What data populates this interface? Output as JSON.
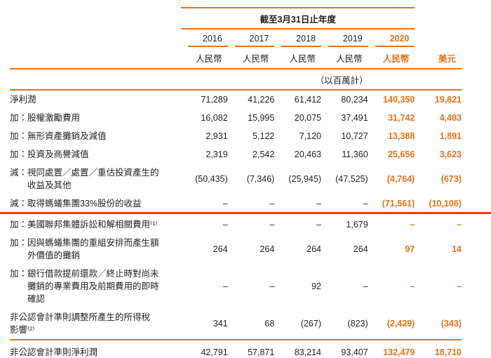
{
  "colors": {
    "accent": "#ed7014",
    "highlight": "#f23908",
    "text": "#231f20"
  },
  "header": {
    "period_title": "截至3月31日止年度",
    "years": [
      "2016",
      "2017",
      "2018",
      "2019",
      "2020"
    ],
    "currencies": [
      "人民幣",
      "人民幣",
      "人民幣",
      "人民幣",
      "人民幣",
      "美元"
    ],
    "unit_note": "（以百萬計）"
  },
  "rows": [
    {
      "prefix": "",
      "label": "淨利潤",
      "values": [
        "71,289",
        "41,226",
        "61,412",
        "80,234",
        "140,350",
        "19,821"
      ]
    },
    {
      "prefix": "加：",
      "label": "股權激勵費用",
      "values": [
        "16,082",
        "15,995",
        "20,075",
        "37,491",
        "31,742",
        "4,483"
      ]
    },
    {
      "prefix": "加：",
      "label": "無形資產攤銷及減值",
      "values": [
        "2,931",
        "5,122",
        "7,120",
        "10,727",
        "13,388",
        "1,891"
      ]
    },
    {
      "prefix": "加：",
      "label": "投資及商譽減值",
      "values": [
        "2,319",
        "2,542",
        "20,463",
        "11,360",
        "25,656",
        "3,623"
      ]
    },
    {
      "prefix": "減：",
      "label": "視同處置／處置／重估投資產生的\n收益及其他",
      "values": [
        "(50,435)",
        "(7,346)",
        "(25,945)",
        "(47,525)",
        "(4,764)",
        "(673)"
      ]
    },
    {
      "prefix": "減：",
      "label": "取得螞蟻集團33%股份的收益",
      "values": [
        "–",
        "–",
        "–",
        "–",
        "(71,561)",
        "(10,106)"
      ]
    },
    {
      "prefix": "加：",
      "label": "美國聯邦集體訴訟和解相關費用⁽¹⁾",
      "values": [
        "–",
        "–",
        "–",
        "1,679",
        "–",
        "–"
      ]
    },
    {
      "prefix": "加：",
      "label": "因與螞蟻集團的重組安排而產生額\n外價值的攤銷",
      "values": [
        "264",
        "264",
        "264",
        "264",
        "97",
        "14"
      ]
    },
    {
      "prefix": "加：",
      "label": "銀行借款提前還款／終止時對尚未\n攤銷的專業費用及前期費用的即時\n確認",
      "values": [
        "–",
        "–",
        "92",
        "–",
        "–",
        "–"
      ]
    },
    {
      "prefix": "",
      "label": "非公認會計準則調整所產生的所得稅\n影響⁽²⁾",
      "values": [
        "341",
        "68",
        "(267)",
        "(823)",
        "(2,429)",
        "(343)"
      ]
    },
    {
      "prefix": "",
      "label": "非公認會計準則淨利潤",
      "values": [
        "42,791",
        "57,871",
        "83,214",
        "93,407",
        "132,479",
        "18,710"
      ]
    }
  ]
}
